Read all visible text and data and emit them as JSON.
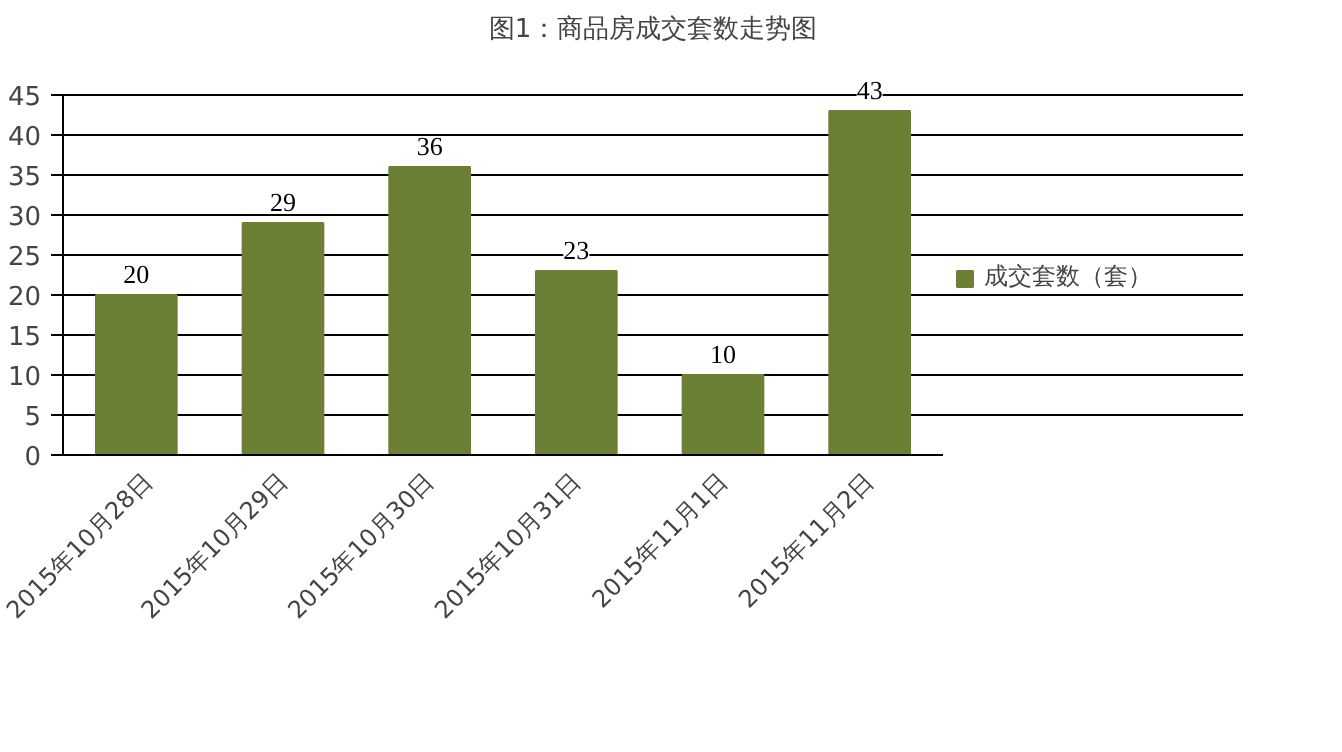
{
  "chart_data": {
    "type": "bar",
    "title": "图1：商品房成交套数走势图",
    "categories": [
      "2015年10月28日",
      "2015年10月29日",
      "2015年10月30日",
      "2015年10月31日",
      "2015年11月1日",
      "2015年11月2日"
    ],
    "series": [
      {
        "name": "成交套数（套）",
        "color": "#6b7f35",
        "values": [
          20,
          29,
          36,
          23,
          10,
          43
        ]
      }
    ],
    "ylim": [
      0,
      45
    ],
    "yticks": [
      0,
      5,
      10,
      15,
      20,
      25,
      30,
      35,
      40,
      45
    ],
    "grid": "y",
    "legend": "right",
    "data_labels": true
  }
}
